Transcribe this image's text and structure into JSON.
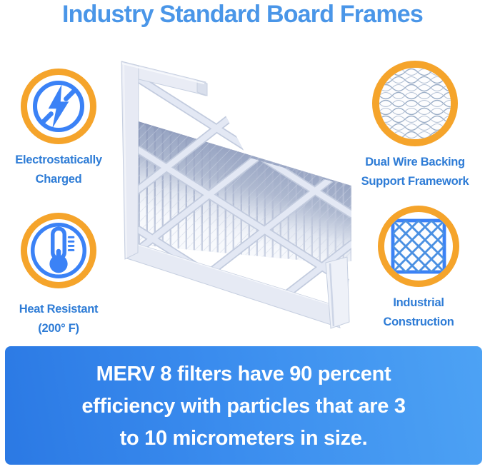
{
  "title": "Industry Standard Board Frames",
  "features": [
    {
      "name": "electrostatically-charged",
      "icon": "lightning-icon",
      "lines": [
        "Electrostatically",
        "Charged"
      ]
    },
    {
      "name": "dual-wire-backing",
      "icon": "wire-mesh-icon",
      "lines": [
        "Dual Wire Backing",
        "Support Framework"
      ]
    },
    {
      "name": "heat-resistant",
      "icon": "thermometer-icon",
      "lines": [
        "Heat Resistant",
        "(200° F)"
      ]
    },
    {
      "name": "industrial-construction",
      "icon": "lattice-grid-icon",
      "lines": [
        "Industrial",
        "Construction"
      ]
    }
  ],
  "banner": {
    "lines": [
      "MERV 8 filters have 90 percent",
      "efficiency with particles that are 3",
      "to 10 micrometers in size."
    ]
  },
  "product": {
    "alt": "Pleated air filter with cutaway board frame"
  },
  "colors": {
    "title_blue": "#4a96e8",
    "label_blue": "#2e7cd6",
    "icon_blue": "#3b82f6",
    "ring_orange": "#f5a42b",
    "banner_gradient_start": "#2b79e4",
    "banner_gradient_end": "#4da2f4",
    "banner_text": "#ffffff",
    "filter_shadow_blue": "#9aa7c5",
    "filter_board": "#e7eaf4"
  }
}
